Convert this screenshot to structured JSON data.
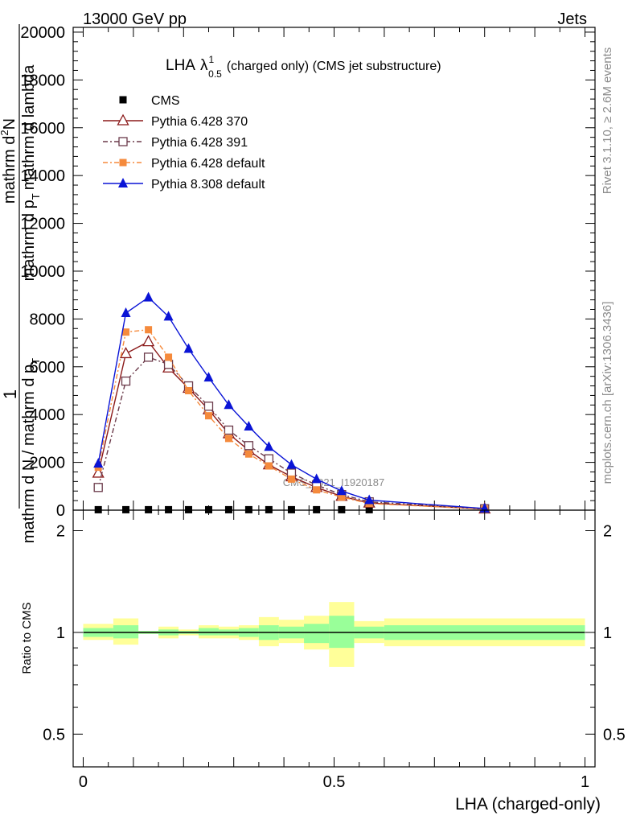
{
  "header": {
    "left": "13000 GeV pp",
    "right": "Jets"
  },
  "title": {
    "main": "LHA",
    "lambda": "λ",
    "sup": "1",
    "sub": "0.5",
    "rest": "(charged only) (CMS jet substructure)"
  },
  "side_labels": {
    "rivet": "Rivet 3.1.10, ≥ 2.6M events",
    "mcplots": "mcplots.cern.ch [arXiv:1306.3436]"
  },
  "watermark": "CMS_2021_I1920187",
  "y_label_main": {
    "numerator": "1",
    "denominator": "mathrm d N / mathrm d p",
    "denominator_sub": "T",
    "numerator2": "mathrm d",
    "numerator2_sup": "2",
    "numerator2_rest": "N",
    "denominator2": "mathrm d p",
    "denominator2_sub": "T",
    "denominator2_rest": "mathrm d lambda"
  },
  "y_label_ratio": "Ratio to CMS",
  "x_label": "LHA (charged-only)",
  "legend": [
    {
      "label": "CMS",
      "color": "#000000",
      "marker": "square-filled",
      "line": "none"
    },
    {
      "label": "Pythia 6.428 370",
      "color": "#8b1a1a",
      "marker": "triangle-open",
      "line": "solid"
    },
    {
      "label": "Pythia 6.428 391",
      "color": "#6b3a4a",
      "marker": "square-open",
      "line": "dashdot"
    },
    {
      "label": "Pythia 6.428 default",
      "color": "#f58a3c",
      "marker": "square-filled",
      "line": "dashdot"
    },
    {
      "label": "Pythia 8.308 default",
      "color": "#0a14d6",
      "marker": "triangle-filled",
      "line": "solid"
    }
  ],
  "chart_data": {
    "type": "line",
    "main_panel": {
      "xlim": [
        -0.02,
        1.02
      ],
      "ylim": [
        0,
        20200
      ],
      "y_ticks": [
        0,
        2000,
        4000,
        6000,
        8000,
        10000,
        12000,
        14000,
        16000,
        18000,
        20000
      ],
      "y_tick_labels": [
        "0",
        "2000",
        "4000",
        "6000",
        "8000",
        "10000",
        "12000",
        "14000",
        "16000",
        "18000",
        "20000"
      ],
      "x": [
        0.03,
        0.085,
        0.13,
        0.17,
        0.21,
        0.25,
        0.29,
        0.33,
        0.37,
        0.415,
        0.465,
        0.515,
        0.57,
        0.8
      ],
      "series": [
        {
          "name": "CMS",
          "values": [
            20,
            20,
            20,
            20,
            20,
            20,
            20,
            20,
            20,
            20,
            20,
            20,
            20,
            20
          ]
        },
        {
          "name": "Pythia 6.428 370",
          "values": [
            1550,
            6550,
            7050,
            5950,
            5100,
            4200,
            3200,
            2500,
            1900,
            1400,
            950,
            580,
            300,
            50
          ]
        },
        {
          "name": "Pythia 6.428 391",
          "values": [
            950,
            5400,
            6400,
            6100,
            5200,
            4350,
            3350,
            2700,
            2150,
            1550,
            1050,
            650,
            350,
            60
          ]
        },
        {
          "name": "Pythia 6.428 default",
          "values": [
            1800,
            7450,
            7550,
            6400,
            5000,
            3950,
            3000,
            2350,
            1850,
            1300,
            850,
            550,
            280,
            45
          ]
        },
        {
          "name": "Pythia 8.308 default",
          "values": [
            1950,
            8250,
            8900,
            8100,
            6750,
            5550,
            4400,
            3500,
            2650,
            1900,
            1300,
            800,
            420,
            70
          ]
        }
      ]
    },
    "ratio_panel": {
      "ylim_log": [
        0.4,
        2.3
      ],
      "y_ticks": [
        0.5,
        1,
        2
      ],
      "y_tick_labels": [
        "0.5",
        "1",
        "2"
      ],
      "x_ticks": [
        0,
        0.5,
        1
      ],
      "x_tick_labels": [
        "0",
        "0.5",
        "1"
      ],
      "bins": [
        {
          "lo": 0.0,
          "hi": 0.06,
          "stat_lo": 0.97,
          "stat_hi": 1.03,
          "tot_lo": 0.95,
          "tot_hi": 1.06
        },
        {
          "lo": 0.06,
          "hi": 0.11,
          "stat_lo": 0.96,
          "stat_hi": 1.05,
          "tot_lo": 0.92,
          "tot_hi": 1.1
        },
        {
          "lo": 0.11,
          "hi": 0.15,
          "stat_lo": 0.99,
          "stat_hi": 1.01,
          "tot_lo": 0.99,
          "tot_hi": 1.01
        },
        {
          "lo": 0.15,
          "hi": 0.19,
          "stat_lo": 0.98,
          "stat_hi": 1.02,
          "tot_lo": 0.96,
          "tot_hi": 1.04
        },
        {
          "lo": 0.19,
          "hi": 0.23,
          "stat_lo": 0.99,
          "stat_hi": 1.01,
          "tot_lo": 0.98,
          "tot_hi": 1.02
        },
        {
          "lo": 0.23,
          "hi": 0.27,
          "stat_lo": 0.98,
          "stat_hi": 1.03,
          "tot_lo": 0.96,
          "tot_hi": 1.05
        },
        {
          "lo": 0.27,
          "hi": 0.31,
          "stat_lo": 0.98,
          "stat_hi": 1.02,
          "tot_lo": 0.96,
          "tot_hi": 1.04
        },
        {
          "lo": 0.31,
          "hi": 0.35,
          "stat_lo": 0.97,
          "stat_hi": 1.03,
          "tot_lo": 0.95,
          "tot_hi": 1.05
        },
        {
          "lo": 0.35,
          "hi": 0.39,
          "stat_lo": 0.95,
          "stat_hi": 1.05,
          "tot_lo": 0.91,
          "tot_hi": 1.11
        },
        {
          "lo": 0.39,
          "hi": 0.44,
          "stat_lo": 0.96,
          "stat_hi": 1.04,
          "tot_lo": 0.93,
          "tot_hi": 1.09
        },
        {
          "lo": 0.44,
          "hi": 0.49,
          "stat_lo": 0.93,
          "stat_hi": 1.06,
          "tot_lo": 0.89,
          "tot_hi": 1.12
        },
        {
          "lo": 0.49,
          "hi": 0.54,
          "stat_lo": 0.9,
          "stat_hi": 1.12,
          "tot_lo": 0.79,
          "tot_hi": 1.23
        },
        {
          "lo": 0.54,
          "hi": 0.6,
          "stat_lo": 0.96,
          "stat_hi": 1.04,
          "tot_lo": 0.93,
          "tot_hi": 1.08
        },
        {
          "lo": 0.6,
          "hi": 1.0,
          "stat_lo": 0.95,
          "stat_hi": 1.05,
          "tot_lo": 0.91,
          "tot_hi": 1.1
        }
      ]
    }
  }
}
